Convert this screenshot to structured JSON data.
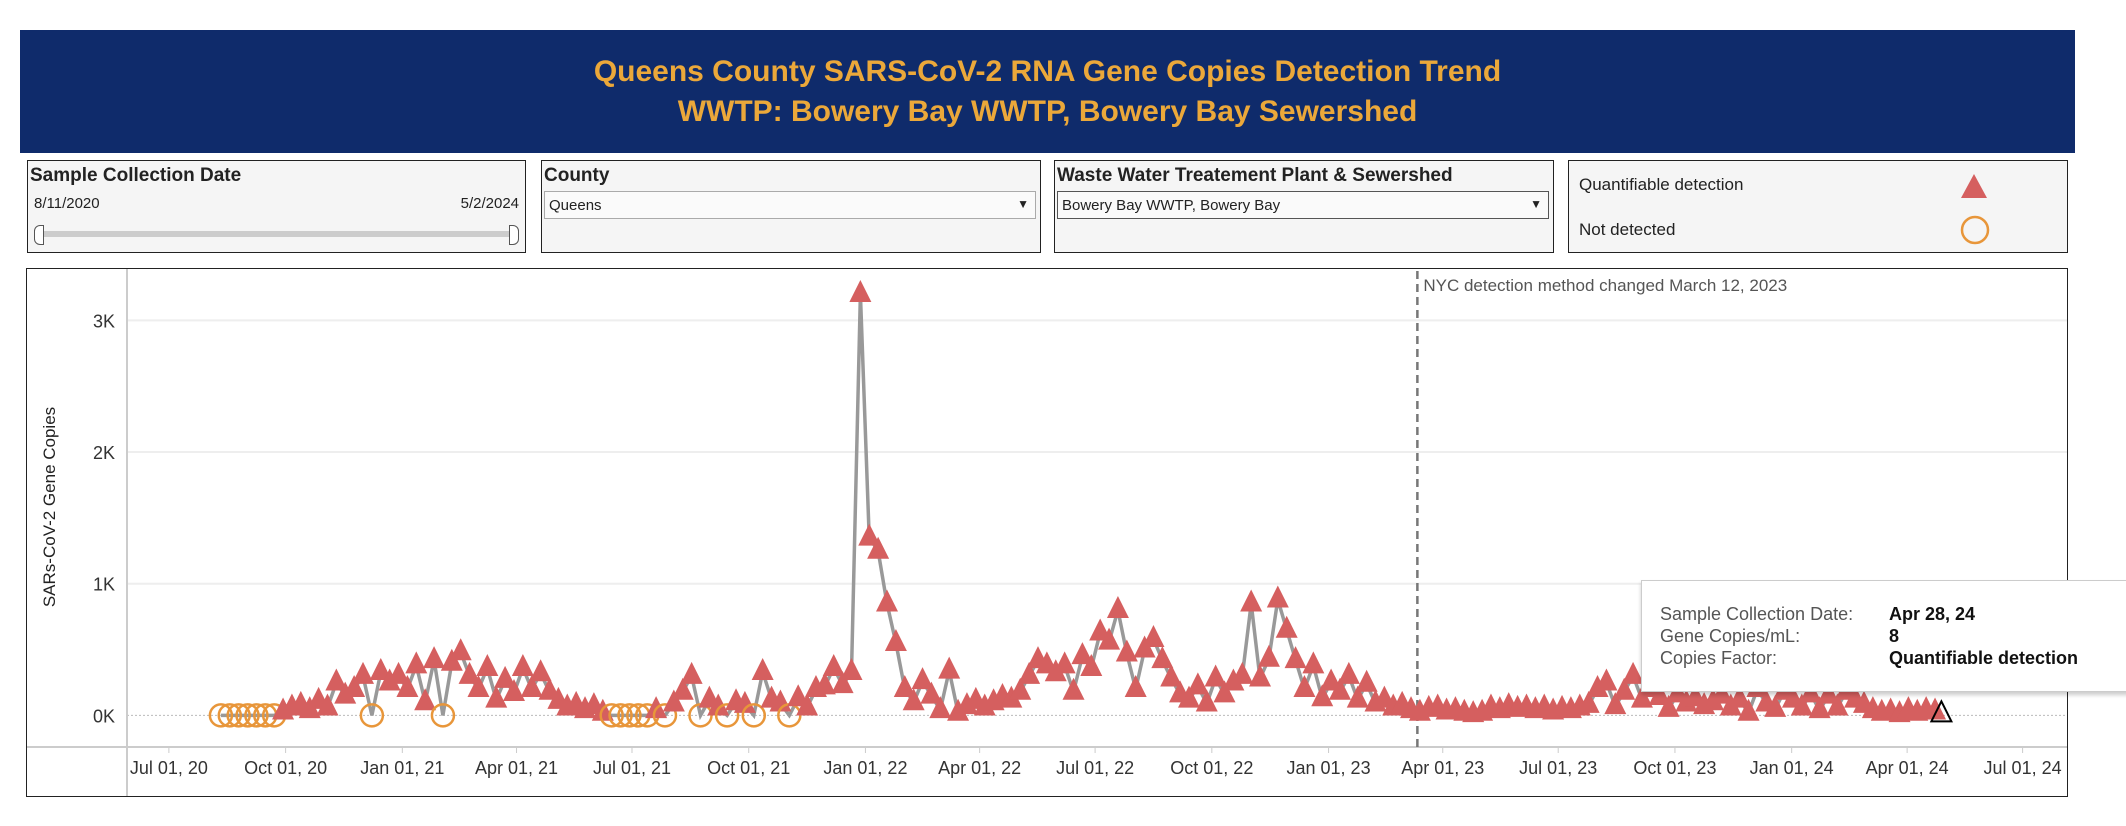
{
  "header": {
    "title": "Queens County SARS-CoV-2 RNA Gene Copies Detection Trend",
    "subtitle": "WWTP: Bowery Bay WWTP, Bowery Bay Sewershed",
    "bg_color": "#0f2b6b",
    "text_color": "#eba83a"
  },
  "filters": {
    "date": {
      "label": "Sample Collection Date",
      "start": "8/11/2020",
      "end": "5/2/2024"
    },
    "county": {
      "label": "County",
      "value": "Queens"
    },
    "wwtp": {
      "label": "Waste Water Treatement Plant & Sewershed",
      "value": "Bowery Bay WWTP, Bowery Bay"
    }
  },
  "legend": {
    "items": [
      {
        "label": "Quantifiable detection",
        "shape": "triangle",
        "color": "#d55f5f"
      },
      {
        "label": "Not detected",
        "shape": "circle",
        "color": "#e8963a"
      }
    ]
  },
  "tooltip": {
    "rows": [
      {
        "label": "Sample Collection Date:",
        "value": "Apr 28, 24"
      },
      {
        "label": "Gene Copies/mL:",
        "value": "8"
      },
      {
        "label": "Copies Factor:",
        "value": "Quantifiable detection"
      }
    ]
  },
  "chart_data": {
    "type": "line",
    "ylabel": "SARs-CoV-2 Gene Copies",
    "yticks": [
      {
        "v": 0,
        "label": "0K"
      },
      {
        "v": 1000,
        "label": "1K"
      },
      {
        "v": 2000,
        "label": "2K"
      },
      {
        "v": 3000,
        "label": "3K"
      }
    ],
    "ylim": [
      -240,
      3390
    ],
    "xlim": [
      "2020-05-29",
      "2024-08-05"
    ],
    "xticks": [
      {
        "d": "2020-07-01",
        "label": "Jul 01, 20"
      },
      {
        "d": "2020-10-01",
        "label": "Oct 01, 20"
      },
      {
        "d": "2021-01-01",
        "label": "Jan 01, 21"
      },
      {
        "d": "2021-04-01",
        "label": "Apr 01, 21"
      },
      {
        "d": "2021-07-01",
        "label": "Jul 01, 21"
      },
      {
        "d": "2021-10-01",
        "label": "Oct 01, 21"
      },
      {
        "d": "2022-01-01",
        "label": "Jan 01, 22"
      },
      {
        "d": "2022-04-01",
        "label": "Apr 01, 22"
      },
      {
        "d": "2022-07-01",
        "label": "Jul 01, 22"
      },
      {
        "d": "2022-10-01",
        "label": "Oct 01, 22"
      },
      {
        "d": "2023-01-01",
        "label": "Jan 01, 23"
      },
      {
        "d": "2023-04-01",
        "label": "Apr 01, 23"
      },
      {
        "d": "2023-07-01",
        "label": "Jul 01, 23"
      },
      {
        "d": "2023-10-01",
        "label": "Oct 01, 23"
      },
      {
        "d": "2024-01-01",
        "label": "Jan 01, 24"
      },
      {
        "d": "2024-04-01",
        "label": "Apr 01, 24"
      },
      {
        "d": "2024-07-01",
        "label": "Jul 01, 24"
      }
    ],
    "reference_line": {
      "date": "2023-03-12",
      "label": "NYC detection method changed March 12, 2023",
      "style": "dashed"
    },
    "grid": "horizontal",
    "line_color": "#999999",
    "highlighted_point": "2024-04-28",
    "points": [
      [
        "2020-08-11",
        0,
        "N"
      ],
      [
        "2020-08-18",
        0,
        "N"
      ],
      [
        "2020-08-25",
        0,
        "N"
      ],
      [
        "2020-09-01",
        0,
        "N"
      ],
      [
        "2020-09-08",
        0,
        "N"
      ],
      [
        "2020-09-15",
        0,
        "N"
      ],
      [
        "2020-09-22",
        0,
        "N"
      ],
      [
        "2020-09-29",
        30,
        "Q"
      ],
      [
        "2020-10-06",
        60,
        "Q"
      ],
      [
        "2020-10-13",
        80,
        "Q"
      ],
      [
        "2020-10-20",
        40,
        "Q"
      ],
      [
        "2020-10-27",
        110,
        "Q"
      ],
      [
        "2020-11-03",
        60,
        "Q"
      ],
      [
        "2020-11-10",
        250,
        "Q"
      ],
      [
        "2020-11-17",
        150,
        "Q"
      ],
      [
        "2020-11-24",
        200,
        "Q"
      ],
      [
        "2020-12-01",
        300,
        "Q"
      ],
      [
        "2020-12-08",
        0,
        "N"
      ],
      [
        "2020-12-15",
        330,
        "Q"
      ],
      [
        "2020-12-22",
        250,
        "Q"
      ],
      [
        "2020-12-29",
        300,
        "Q"
      ],
      [
        "2021-01-05",
        200,
        "Q"
      ],
      [
        "2021-01-12",
        380,
        "Q"
      ],
      [
        "2021-01-19",
        100,
        "Q"
      ],
      [
        "2021-01-26",
        420,
        "Q"
      ],
      [
        "2021-02-02",
        0,
        "N"
      ],
      [
        "2021-02-09",
        400,
        "Q"
      ],
      [
        "2021-02-16",
        480,
        "Q"
      ],
      [
        "2021-02-23",
        300,
        "Q"
      ],
      [
        "2021-03-02",
        200,
        "Q"
      ],
      [
        "2021-03-09",
        360,
        "Q"
      ],
      [
        "2021-03-16",
        120,
        "Q"
      ],
      [
        "2021-03-23",
        270,
        "Q"
      ],
      [
        "2021-03-30",
        170,
        "Q"
      ],
      [
        "2021-04-06",
        360,
        "Q"
      ],
      [
        "2021-04-13",
        200,
        "Q"
      ],
      [
        "2021-04-20",
        320,
        "Q"
      ],
      [
        "2021-04-27",
        180,
        "Q"
      ],
      [
        "2021-05-04",
        110,
        "Q"
      ],
      [
        "2021-05-11",
        60,
        "Q"
      ],
      [
        "2021-05-18",
        80,
        "Q"
      ],
      [
        "2021-05-25",
        40,
        "Q"
      ],
      [
        "2021-06-01",
        70,
        "Q"
      ],
      [
        "2021-06-08",
        20,
        "Q"
      ],
      [
        "2021-06-15",
        0,
        "N"
      ],
      [
        "2021-06-22",
        0,
        "N"
      ],
      [
        "2021-06-29",
        0,
        "N"
      ],
      [
        "2021-07-06",
        0,
        "N"
      ],
      [
        "2021-07-13",
        0,
        "N"
      ],
      [
        "2021-07-20",
        40,
        "Q"
      ],
      [
        "2021-07-27",
        0,
        "N"
      ],
      [
        "2021-08-03",
        90,
        "Q"
      ],
      [
        "2021-08-10",
        180,
        "Q"
      ],
      [
        "2021-08-17",
        300,
        "Q"
      ],
      [
        "2021-08-24",
        0,
        "N"
      ],
      [
        "2021-08-31",
        120,
        "Q"
      ],
      [
        "2021-09-07",
        60,
        "Q"
      ],
      [
        "2021-09-14",
        0,
        "N"
      ],
      [
        "2021-09-21",
        100,
        "Q"
      ],
      [
        "2021-09-28",
        80,
        "Q"
      ],
      [
        "2021-10-05",
        0,
        "N"
      ],
      [
        "2021-10-12",
        330,
        "Q"
      ],
      [
        "2021-10-19",
        120,
        "Q"
      ],
      [
        "2021-10-26",
        90,
        "Q"
      ],
      [
        "2021-11-02",
        0,
        "N"
      ],
      [
        "2021-11-09",
        130,
        "Q"
      ],
      [
        "2021-11-16",
        60,
        "Q"
      ],
      [
        "2021-11-23",
        200,
        "Q"
      ],
      [
        "2021-11-30",
        220,
        "Q"
      ],
      [
        "2021-12-07",
        360,
        "Q"
      ],
      [
        "2021-12-14",
        230,
        "Q"
      ],
      [
        "2021-12-21",
        330,
        "Q"
      ],
      [
        "2021-12-28",
        3200,
        "Q"
      ],
      [
        "2022-01-04",
        1350,
        "Q"
      ],
      [
        "2022-01-11",
        1250,
        "Q"
      ],
      [
        "2022-01-18",
        850,
        "Q"
      ],
      [
        "2022-01-25",
        550,
        "Q"
      ],
      [
        "2022-02-01",
        200,
        "Q"
      ],
      [
        "2022-02-08",
        100,
        "Q"
      ],
      [
        "2022-02-15",
        260,
        "Q"
      ],
      [
        "2022-02-22",
        150,
        "Q"
      ],
      [
        "2022-03-01",
        40,
        "Q"
      ],
      [
        "2022-03-08",
        340,
        "Q"
      ],
      [
        "2022-03-15",
        20,
        "Q"
      ],
      [
        "2022-03-22",
        70,
        "Q"
      ],
      [
        "2022-03-29",
        110,
        "Q"
      ],
      [
        "2022-04-05",
        60,
        "Q"
      ],
      [
        "2022-04-12",
        100,
        "Q"
      ],
      [
        "2022-04-19",
        140,
        "Q"
      ],
      [
        "2022-04-26",
        120,
        "Q"
      ],
      [
        "2022-05-03",
        180,
        "Q"
      ],
      [
        "2022-05-10",
        300,
        "Q"
      ],
      [
        "2022-05-17",
        420,
        "Q"
      ],
      [
        "2022-05-24",
        380,
        "Q"
      ],
      [
        "2022-05-31",
        320,
        "Q"
      ],
      [
        "2022-06-07",
        380,
        "Q"
      ],
      [
        "2022-06-14",
        180,
        "Q"
      ],
      [
        "2022-06-21",
        450,
        "Q"
      ],
      [
        "2022-06-28",
        360,
        "Q"
      ],
      [
        "2022-07-05",
        630,
        "Q"
      ],
      [
        "2022-07-12",
        560,
        "Q"
      ],
      [
        "2022-07-19",
        800,
        "Q"
      ],
      [
        "2022-07-26",
        470,
        "Q"
      ],
      [
        "2022-08-02",
        200,
        "Q"
      ],
      [
        "2022-08-09",
        500,
        "Q"
      ],
      [
        "2022-08-16",
        580,
        "Q"
      ],
      [
        "2022-08-23",
        420,
        "Q"
      ],
      [
        "2022-08-30",
        280,
        "Q"
      ],
      [
        "2022-09-06",
        160,
        "Q"
      ],
      [
        "2022-09-13",
        120,
        "Q"
      ],
      [
        "2022-09-20",
        220,
        "Q"
      ],
      [
        "2022-09-27",
        90,
        "Q"
      ],
      [
        "2022-10-04",
        280,
        "Q"
      ],
      [
        "2022-10-11",
        160,
        "Q"
      ],
      [
        "2022-10-18",
        250,
        "Q"
      ],
      [
        "2022-10-25",
        300,
        "Q"
      ],
      [
        "2022-11-01",
        850,
        "Q"
      ],
      [
        "2022-11-08",
        280,
        "Q"
      ],
      [
        "2022-11-15",
        430,
        "Q"
      ],
      [
        "2022-11-22",
        880,
        "Q"
      ],
      [
        "2022-11-29",
        650,
        "Q"
      ],
      [
        "2022-12-06",
        420,
        "Q"
      ],
      [
        "2022-12-13",
        200,
        "Q"
      ],
      [
        "2022-12-20",
        380,
        "Q"
      ],
      [
        "2022-12-27",
        130,
        "Q"
      ],
      [
        "2023-01-03",
        250,
        "Q"
      ],
      [
        "2023-01-10",
        180,
        "Q"
      ],
      [
        "2023-01-17",
        300,
        "Q"
      ],
      [
        "2023-01-24",
        120,
        "Q"
      ],
      [
        "2023-01-31",
        240,
        "Q"
      ],
      [
        "2023-02-07",
        90,
        "Q"
      ],
      [
        "2023-02-14",
        120,
        "Q"
      ],
      [
        "2023-02-21",
        60,
        "Q"
      ],
      [
        "2023-02-28",
        80,
        "Q"
      ],
      [
        "2023-03-07",
        40,
        "Q"
      ],
      [
        "2023-03-14",
        20,
        "Q"
      ],
      [
        "2023-03-21",
        50,
        "Q"
      ],
      [
        "2023-03-28",
        60,
        "Q"
      ],
      [
        "2023-04-04",
        30,
        "Q"
      ],
      [
        "2023-04-11",
        40,
        "Q"
      ],
      [
        "2023-04-18",
        20,
        "Q"
      ],
      [
        "2023-04-25",
        10,
        "Q"
      ],
      [
        "2023-05-02",
        20,
        "Q"
      ],
      [
        "2023-05-09",
        60,
        "Q"
      ],
      [
        "2023-05-16",
        40,
        "Q"
      ],
      [
        "2023-05-23",
        70,
        "Q"
      ],
      [
        "2023-05-30",
        50,
        "Q"
      ],
      [
        "2023-06-06",
        60,
        "Q"
      ],
      [
        "2023-06-13",
        40,
        "Q"
      ],
      [
        "2023-06-20",
        60,
        "Q"
      ],
      [
        "2023-06-27",
        30,
        "Q"
      ],
      [
        "2023-07-04",
        50,
        "Q"
      ],
      [
        "2023-07-11",
        40,
        "Q"
      ],
      [
        "2023-07-18",
        60,
        "Q"
      ],
      [
        "2023-07-25",
        80,
        "Q"
      ],
      [
        "2023-08-01",
        200,
        "Q"
      ],
      [
        "2023-08-08",
        250,
        "Q"
      ],
      [
        "2023-08-15",
        70,
        "Q"
      ],
      [
        "2023-08-22",
        180,
        "Q"
      ],
      [
        "2023-08-29",
        300,
        "Q"
      ],
      [
        "2023-09-05",
        120,
        "Q"
      ],
      [
        "2023-09-12",
        200,
        "Q"
      ],
      [
        "2023-09-19",
        140,
        "Q"
      ],
      [
        "2023-09-26",
        50,
        "Q"
      ],
      [
        "2023-10-03",
        160,
        "Q"
      ],
      [
        "2023-10-10",
        90,
        "Q"
      ],
      [
        "2023-10-17",
        130,
        "Q"
      ],
      [
        "2023-10-24",
        70,
        "Q"
      ],
      [
        "2023-10-31",
        100,
        "Q"
      ],
      [
        "2023-11-07",
        150,
        "Q"
      ],
      [
        "2023-11-14",
        60,
        "Q"
      ],
      [
        "2023-11-21",
        120,
        "Q"
      ],
      [
        "2023-11-28",
        20,
        "Q"
      ],
      [
        "2023-12-05",
        200,
        "Q"
      ],
      [
        "2023-12-12",
        90,
        "Q"
      ],
      [
        "2023-12-19",
        50,
        "Q"
      ],
      [
        "2023-12-26",
        180,
        "Q"
      ],
      [
        "2024-01-02",
        120,
        "Q"
      ],
      [
        "2024-01-09",
        60,
        "Q"
      ],
      [
        "2024-01-16",
        160,
        "Q"
      ],
      [
        "2024-01-23",
        40,
        "Q"
      ],
      [
        "2024-01-30",
        150,
        "Q"
      ],
      [
        "2024-02-06",
        60,
        "Q"
      ],
      [
        "2024-02-13",
        180,
        "Q"
      ],
      [
        "2024-02-20",
        120,
        "Q"
      ],
      [
        "2024-02-27",
        80,
        "Q"
      ],
      [
        "2024-03-05",
        40,
        "Q"
      ],
      [
        "2024-03-12",
        20,
        "Q"
      ],
      [
        "2024-03-19",
        30,
        "Q"
      ],
      [
        "2024-03-26",
        10,
        "Q"
      ],
      [
        "2024-04-02",
        40,
        "Q"
      ],
      [
        "2024-04-09",
        20,
        "Q"
      ],
      [
        "2024-04-16",
        40,
        "Q"
      ],
      [
        "2024-04-23",
        30,
        "Q"
      ],
      [
        "2024-04-28",
        8,
        "Q"
      ]
    ]
  }
}
